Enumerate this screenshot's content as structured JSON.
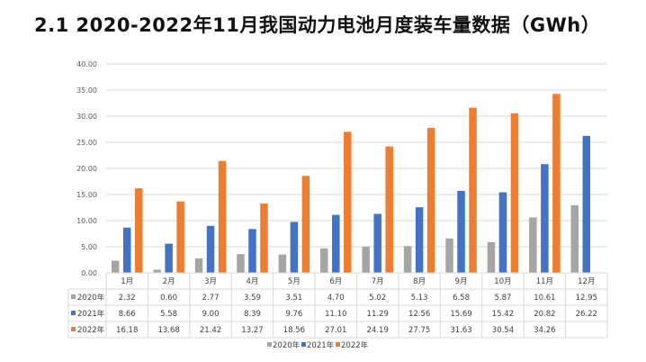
{
  "chart_data": {
    "type": "bar",
    "title": "2.1 2020-2022年11月我国动力电池月度装车量数据（GWh）",
    "categories": [
      "1月",
      "2月",
      "3月",
      "4月",
      "5月",
      "6月",
      "7月",
      "8月",
      "9月",
      "10月",
      "11月",
      "12月"
    ],
    "series": [
      {
        "name": "2020年",
        "color": "#a5a5a5",
        "values": [
          2.32,
          0.6,
          2.77,
          3.59,
          3.51,
          4.7,
          5.02,
          5.13,
          6.58,
          5.87,
          10.61,
          12.95
        ],
        "labels": [
          "2.32",
          "0.60",
          "2.77",
          "3.59",
          "3.51",
          "4.70",
          "5.02",
          "5.13",
          "6.58",
          "5.87",
          "10.61",
          "12.95"
        ]
      },
      {
        "name": "2021年",
        "color": "#4472c4",
        "values": [
          8.66,
          5.58,
          9.0,
          8.39,
          9.76,
          11.1,
          11.29,
          12.56,
          15.69,
          15.42,
          20.82,
          26.22
        ],
        "labels": [
          "8.66",
          "5.58",
          "9.00",
          "8.39",
          "9.76",
          "11.10",
          "11.29",
          "12.56",
          "15.69",
          "15.42",
          "20.82",
          "26.22"
        ]
      },
      {
        "name": "2022年",
        "color": "#ed7d31",
        "values": [
          16.18,
          13.68,
          21.42,
          13.27,
          18.56,
          27.01,
          24.19,
          27.75,
          31.63,
          30.54,
          34.26,
          null
        ],
        "labels": [
          "16.18",
          "13.68",
          "21.42",
          "13.27",
          "18.56",
          "27.01",
          "24.19",
          "27.75",
          "31.63",
          "30.54",
          "34.26",
          ""
        ]
      }
    ],
    "yticks": [
      "0.00",
      "5.00",
      "10.00",
      "15.00",
      "20.00",
      "25.00",
      "30.00",
      "35.00",
      "40.00"
    ],
    "ylim": [
      0,
      40
    ],
    "grid": true,
    "legend": "bottom",
    "data_table": true
  }
}
